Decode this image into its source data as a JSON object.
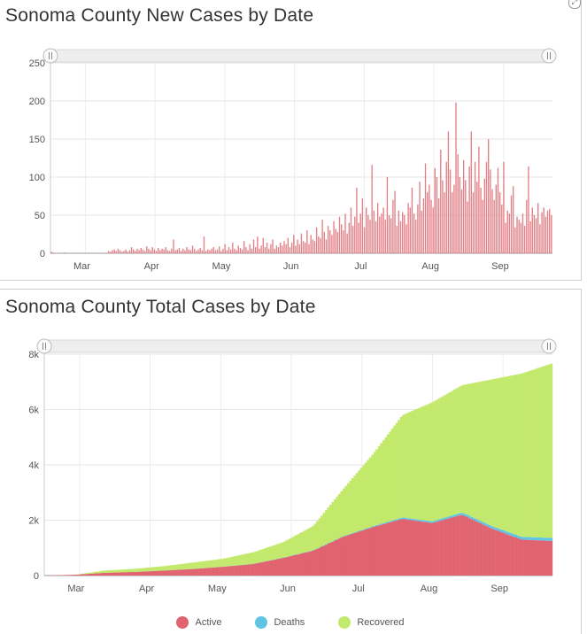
{
  "chart_data": [
    {
      "type": "bar",
      "title": "Sonoma County New Cases by Date",
      "ylim": [
        0,
        250
      ],
      "yticks": [
        "250",
        "200",
        "150",
        "100",
        "50",
        "0"
      ],
      "yticks_values": [
        250,
        200,
        150,
        100,
        50,
        0
      ],
      "xticks": [
        "Mar",
        "Apr",
        "May",
        "Jun",
        "Jul",
        "Aug",
        "Sep"
      ],
      "color": "#e37f86",
      "series_name": "",
      "values": [
        2,
        1,
        0,
        0,
        0,
        0,
        0,
        1,
        0,
        0,
        0,
        0,
        0,
        0,
        0,
        0,
        0,
        0,
        0,
        0,
        0,
        0,
        0,
        0,
        0,
        0,
        0,
        0,
        0,
        0,
        3,
        2,
        4,
        5,
        3,
        6,
        4,
        2,
        3,
        5,
        2,
        4,
        8,
        5,
        3,
        6,
        4,
        7,
        5,
        3,
        9,
        6,
        4,
        8,
        5,
        3,
        7,
        4,
        6,
        5,
        8,
        4,
        3,
        6,
        18,
        4,
        5,
        7,
        3,
        6,
        4,
        8,
        5,
        4,
        10,
        6,
        3,
        5,
        7,
        4,
        22,
        3,
        5,
        4,
        6,
        8,
        4,
        5,
        9,
        3,
        6,
        12,
        4,
        8,
        5,
        14,
        6,
        4,
        10,
        7,
        5,
        16,
        8,
        4,
        12,
        6,
        18,
        8,
        22,
        6,
        10,
        20,
        8,
        14,
        6,
        12,
        18,
        6,
        10,
        8,
        14,
        10,
        16,
        12,
        20,
        8,
        14,
        24,
        10,
        18,
        12,
        26,
        16,
        14,
        30,
        12,
        24,
        18,
        16,
        34,
        22,
        20,
        44,
        28,
        18,
        36,
        30,
        24,
        42,
        32,
        28,
        48,
        38,
        30,
        52,
        26,
        40,
        60,
        36,
        48,
        86,
        40,
        52,
        72,
        34,
        60,
        50,
        44,
        116,
        56,
        42,
        66,
        48,
        52,
        60,
        44,
        100,
        50,
        46,
        70,
        82,
        36,
        56,
        42,
        54,
        50,
        38,
        66,
        60,
        86,
        52,
        44,
        64,
        94,
        56,
        72,
        118,
        80,
        90,
        70,
        60,
        112,
        100,
        72,
        136,
        96,
        80,
        120,
        160,
        110,
        80,
        90,
        198,
        130,
        100,
        84,
        122,
        96,
        68,
        114,
        160,
        80,
        120,
        94,
        140,
        86,
        70,
        98,
        120,
        150,
        110,
        84,
        70,
        90,
        112,
        80,
        64,
        120,
        40,
        56,
        52,
        76,
        88,
        34,
        48,
        44,
        40,
        52,
        36,
        70,
        114,
        42,
        60,
        50,
        46,
        66,
        38,
        54,
        60,
        48,
        56,
        58,
        50
      ]
    },
    {
      "type": "area",
      "title": "Sonoma County Total Cases by Date",
      "ylim": [
        0,
        8000
      ],
      "yticks": [
        "8k",
        "6k",
        "4k",
        "2k",
        "0"
      ],
      "yticks_values": [
        8000,
        6000,
        4000,
        2000,
        0
      ],
      "xticks": [
        "Mar",
        "Apr",
        "May",
        "Jun",
        "Jul",
        "Aug",
        "Sep"
      ],
      "x": [
        "Mar 1",
        "Mar 15",
        "Apr 1",
        "Apr 15",
        "May 1",
        "May 15",
        "Jun 1",
        "Jun 15",
        "Jul 1",
        "Jul 15",
        "Aug 1",
        "Aug 10",
        "Aug 20",
        "Aug 25",
        "Sep 1",
        "Sep 5",
        "Sep 10",
        "Sep 14"
      ],
      "series": [
        {
          "name": "Active",
          "color": "#e0636f",
          "values": [
            0,
            30,
            100,
            130,
            180,
            240,
            320,
            420,
            640,
            900,
            1400,
            1750,
            2050,
            1900,
            2200,
            1700,
            1300,
            1250
          ]
        },
        {
          "name": "Deaths",
          "color": "#5fc3e3",
          "values": [
            0,
            1,
            2,
            2,
            3,
            4,
            5,
            6,
            10,
            14,
            20,
            30,
            50,
            60,
            80,
            90,
            100,
            110
          ]
        },
        {
          "name": "Recovered",
          "color": "#c2e96b",
          "values": [
            0,
            0,
            80,
            110,
            160,
            230,
            290,
            420,
            560,
            880,
            1700,
            2600,
            3700,
            4300,
            4600,
            5300,
            5900,
            6300
          ]
        }
      ]
    }
  ],
  "legend": {
    "items": [
      {
        "label": "Active",
        "color": "#e0636f"
      },
      {
        "label": "Deaths",
        "color": "#5fc3e3"
      },
      {
        "label": "Recovered",
        "color": "#c2e96b"
      }
    ]
  }
}
